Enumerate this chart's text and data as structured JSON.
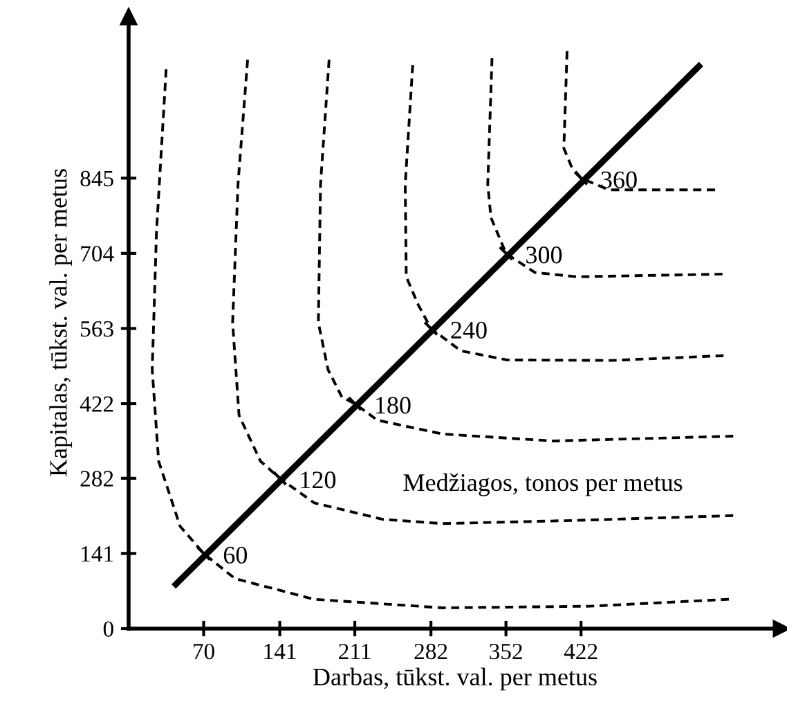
{
  "chart_data": {
    "type": "line",
    "xlabel": "Darbas, tūkst. val. per metus",
    "ylabel": "Kapitalas, tūkst. val. per metus",
    "xlim": [
      0,
      609
    ],
    "ylim": [
      0,
      1148
    ],
    "xticks": [
      70,
      141,
      211,
      282,
      352,
      422
    ],
    "yticks": [
      0,
      141,
      282,
      422,
      563,
      704,
      845
    ],
    "line_style": "dashed",
    "series": [
      {
        "color": "#000000",
        "x": [
          35,
          26,
          22,
          28,
          48,
          70,
          99,
          173,
          293,
          430,
          560
        ],
        "values": [
          1049,
          745,
          486,
          314,
          192,
          141,
          94,
          55,
          39,
          42,
          55
        ]
      },
      {
        "color": "#000000",
        "x": [
          111,
          102,
          97,
          103,
          123,
          141,
          173,
          237,
          293,
          418,
          564
        ],
        "values": [
          1067,
          833,
          574,
          400,
          314,
          282,
          236,
          205,
          197,
          203,
          212
        ]
      },
      {
        "color": "#000000",
        "x": [
          187,
          179,
          177,
          186,
          199,
          211,
          232,
          293,
          396,
          564
        ],
        "values": [
          1067,
          833,
          574,
          486,
          434,
          422,
          391,
          365,
          352,
          361
        ]
      },
      {
        "color": "#000000",
        "x": [
          265,
          258,
          259,
          270,
          282,
          310,
          353,
          450,
          555
        ],
        "values": [
          1057,
          833,
          660,
          608,
          563,
          521,
          504,
          503,
          512
        ]
      },
      {
        "color": "#000000",
        "x": [
          339,
          335,
          338,
          352,
          379,
          418,
          554
        ],
        "values": [
          1070,
          833,
          771,
          704,
          668,
          660,
          665
        ]
      },
      {
        "color": "#000000",
        "x": [
          409,
          406,
          413,
          422,
          448,
          547
        ],
        "values": [
          1083,
          901,
          867,
          845,
          823,
          823
        ]
      },
      {
        "color": "#000000",
        "line_style": "solid",
        "x": [
          44,
          532
        ],
        "values": [
          83,
          1055
        ]
      }
    ],
    "annotations": [
      {
        "text": "60",
        "x": 70,
        "y": 141
      },
      {
        "text": "120",
        "x": 141,
        "y": 282
      },
      {
        "text": "180",
        "x": 211,
        "y": 422
      },
      {
        "text": "240",
        "x": 282,
        "y": 563
      },
      {
        "text": "300",
        "x": 352,
        "y": 704
      },
      {
        "text": "360",
        "x": 422,
        "y": 845
      },
      "Medžiagos, tonos per metus"
    ]
  }
}
